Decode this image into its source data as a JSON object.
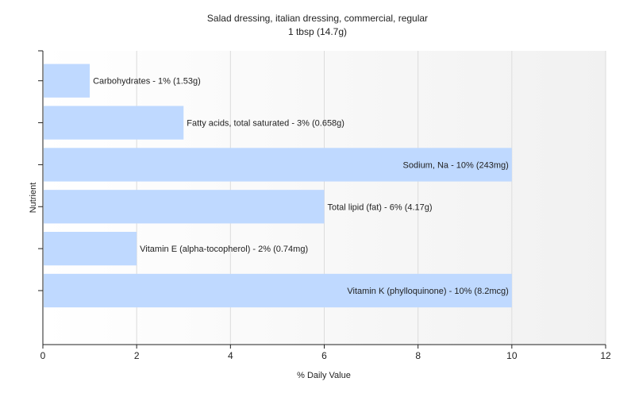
{
  "chart_data": {
    "type": "bar",
    "orientation": "horizontal",
    "title": "Salad dressing, italian dressing, commercial, regular",
    "subtitle": "1 tbsp (14.7g)",
    "xlabel": "% Daily Value",
    "ylabel": "Nutrient",
    "xlim": [
      0,
      12
    ],
    "xticks": [
      0,
      2,
      4,
      6,
      8,
      10,
      12
    ],
    "grid": true,
    "bar_color": "#bfd9ff",
    "categories": [
      "Carbohydrates",
      "Fatty acids, total saturated",
      "Sodium, Na",
      "Total lipid (fat)",
      "Vitamin E (alpha-tocopherol)",
      "Vitamin K (phylloquinone)"
    ],
    "values": [
      1,
      3,
      10,
      6,
      2,
      10
    ],
    "labels": [
      "Carbohydrates - 1% (1.53g)",
      "Fatty acids, total saturated - 3% (0.658g)",
      "Sodium, Na - 10% (243mg)",
      "Total lipid (fat) - 6% (4.17g)",
      "Vitamin E (alpha-tocopherol) - 2% (0.74mg)",
      "Vitamin K (phylloquinone) - 10% (8.2mcg)"
    ]
  }
}
